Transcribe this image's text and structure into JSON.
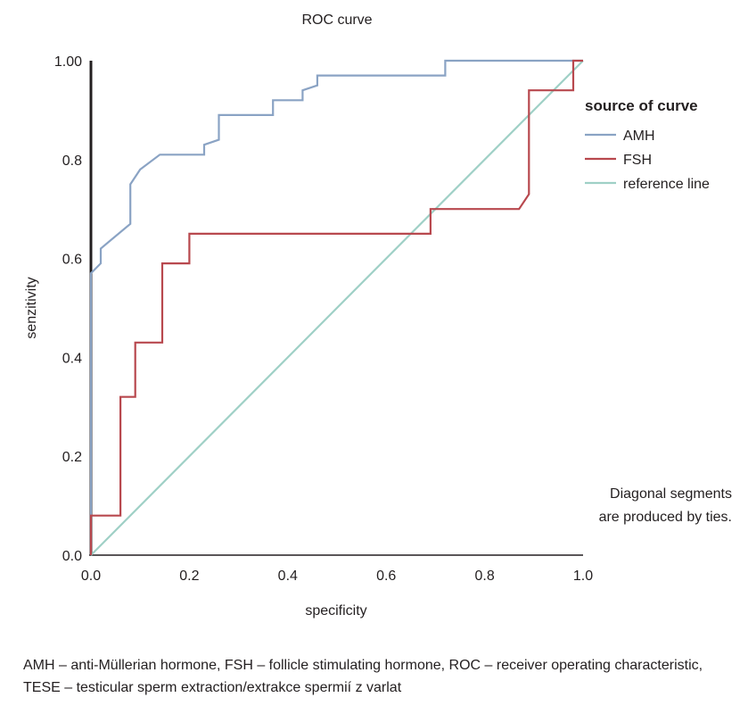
{
  "chart_data": {
    "type": "line",
    "title": "ROC curve",
    "xlabel": "specificity",
    "ylabel": "senzitivity",
    "xlim": [
      0,
      1
    ],
    "ylim": [
      0,
      1
    ],
    "x_ticks": [
      "0.0",
      "0.2",
      "0.4",
      "0.6",
      "0.8",
      "1.0"
    ],
    "y_ticks": [
      "0.0",
      "0.2",
      "0.4",
      "0.6",
      "0.8",
      "1.00"
    ],
    "grid": false,
    "legend": {
      "title": "source of curve",
      "position": "top-right"
    },
    "annotation": [
      "Diagonal segments",
      "are produced by ties."
    ],
    "series": [
      {
        "name": "AMH",
        "color": "#8aa3c4",
        "points": [
          [
            0,
            0
          ],
          [
            0,
            0.57
          ],
          [
            0.02,
            0.59
          ],
          [
            0.02,
            0.62
          ],
          [
            0.08,
            0.67
          ],
          [
            0.08,
            0.75
          ],
          [
            0.1,
            0.78
          ],
          [
            0.14,
            0.81
          ],
          [
            0.23,
            0.81
          ],
          [
            0.23,
            0.83
          ],
          [
            0.26,
            0.84
          ],
          [
            0.26,
            0.89
          ],
          [
            0.37,
            0.89
          ],
          [
            0.37,
            0.92
          ],
          [
            0.43,
            0.92
          ],
          [
            0.43,
            0.94
          ],
          [
            0.46,
            0.95
          ],
          [
            0.46,
            0.97
          ],
          [
            0.72,
            0.97
          ],
          [
            0.72,
            1.0
          ],
          [
            1.0,
            1.0
          ]
        ]
      },
      {
        "name": "FSH",
        "color": "#b8484e",
        "points": [
          [
            0,
            0
          ],
          [
            0,
            0.08
          ],
          [
            0.06,
            0.08
          ],
          [
            0.06,
            0.32
          ],
          [
            0.09,
            0.32
          ],
          [
            0.09,
            0.43
          ],
          [
            0.145,
            0.43
          ],
          [
            0.145,
            0.59
          ],
          [
            0.2,
            0.59
          ],
          [
            0.2,
            0.65
          ],
          [
            0.69,
            0.65
          ],
          [
            0.69,
            0.7
          ],
          [
            0.87,
            0.7
          ],
          [
            0.89,
            0.73
          ],
          [
            0.89,
            0.94
          ],
          [
            0.98,
            0.94
          ],
          [
            0.98,
            1.0
          ],
          [
            1.0,
            1.0
          ]
        ]
      },
      {
        "name": "reference line",
        "color": "#9fd0c6",
        "points": [
          [
            0,
            0
          ],
          [
            1,
            1
          ]
        ]
      }
    ]
  },
  "caption": "AMH – anti-Müllerian hormone, FSH – follicle stimulating hormone, ROC – receiver operating characteristic, TESE – testicular sperm extraction/extrakce spermií z varlat"
}
